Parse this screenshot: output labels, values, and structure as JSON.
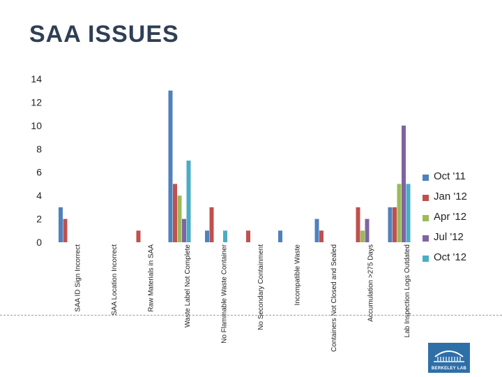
{
  "page": {
    "title": "SAA ISSUES"
  },
  "logo": {
    "text": "BERKELEY LAB"
  },
  "chart_data": {
    "type": "bar",
    "title": "SAA ISSUES",
    "xlabel": "",
    "ylabel": "",
    "ylim": [
      0,
      14
    ],
    "yticks": [
      0,
      2,
      4,
      6,
      8,
      10,
      12,
      14
    ],
    "grid": false,
    "legend_position": "right",
    "categories": [
      "SAA ID Sign Incorrect",
      "SAA Location Incorrect",
      "Raw Materials in SAA",
      "Waste Label Not Complete",
      "No Flammable Waste Container",
      "No Secondary Containment",
      "Incompatible Waste",
      "Containers Not Closed and Sealed",
      "Accumulation >275 Days",
      "Lab Inspection Logs Outdated"
    ],
    "series": [
      {
        "name": "Oct '11",
        "color": "#4f81bd",
        "values": [
          3,
          0,
          0,
          13,
          1,
          0,
          1,
          2,
          0,
          3
        ]
      },
      {
        "name": "Jan '12",
        "color": "#c0504d",
        "values": [
          2,
          0,
          1,
          5,
          3,
          1,
          0,
          1,
          3,
          3
        ]
      },
      {
        "name": "Apr '12",
        "color": "#9bbb59",
        "values": [
          0,
          0,
          0,
          4,
          0,
          0,
          0,
          0,
          1,
          5
        ]
      },
      {
        "name": "Jul '12",
        "color": "#8064a2",
        "values": [
          0,
          0,
          0,
          2,
          0,
          0,
          0,
          0,
          2,
          10
        ]
      },
      {
        "name": "Oct '12",
        "color": "#4bacc6",
        "values": [
          0,
          0,
          0,
          7,
          1,
          0,
          0,
          0,
          0,
          5
        ]
      }
    ]
  }
}
